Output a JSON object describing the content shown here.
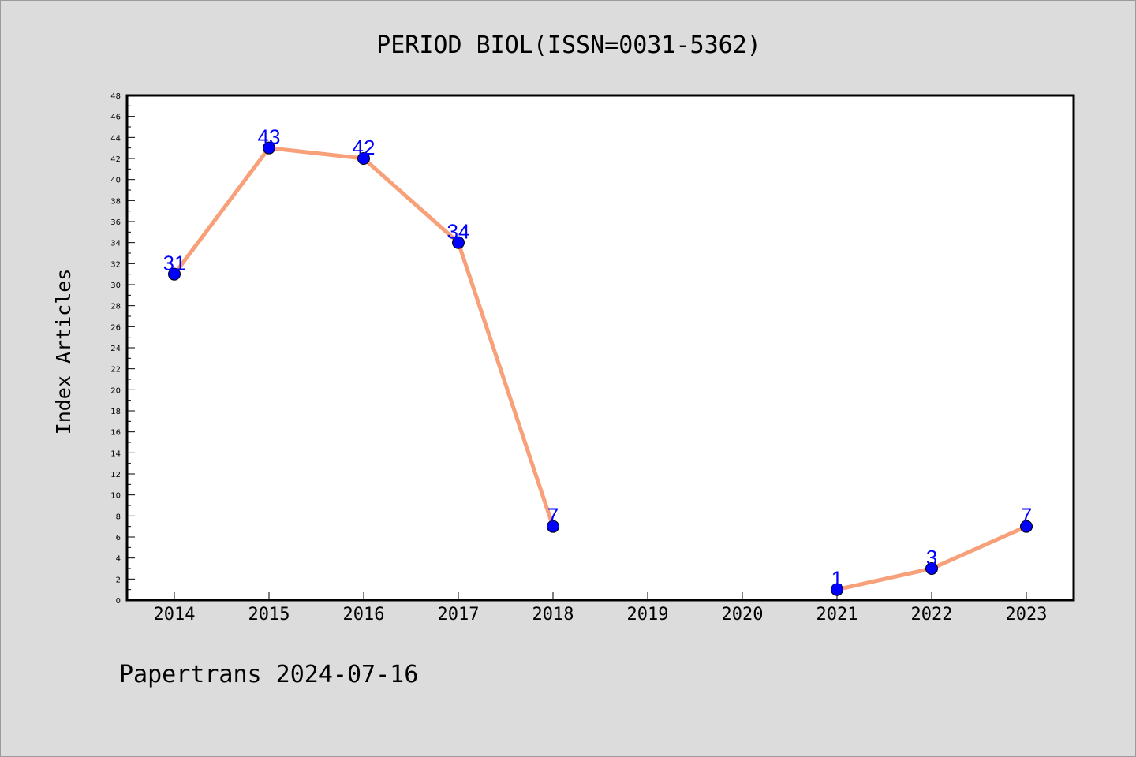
{
  "colors": {
    "background": "#dcdcdc",
    "plot_background": "#ffffff",
    "line": "#f7a07a",
    "marker": "#0000ff",
    "data_label": "#0000ff",
    "axis": "#000000"
  },
  "footer": {
    "text": "Papertrans 2024-07-16"
  },
  "chart_data": {
    "type": "line",
    "title": "PERIOD BIOL(ISSN=0031-5362)",
    "xlabel": "",
    "ylabel": "Index Articles",
    "ylim": [
      0,
      48
    ],
    "y_major_step": 2,
    "y_minor_step": 1,
    "grid": false,
    "legend": "none",
    "categories": [
      "2014",
      "2015",
      "2016",
      "2017",
      "2018",
      "2019",
      "2020",
      "2021",
      "2022",
      "2023"
    ],
    "series": [
      {
        "values": [
          31,
          43,
          42,
          34,
          7,
          null,
          null,
          1,
          3,
          7
        ],
        "color": "#f7a07a",
        "marker_color": "#0000ff"
      }
    ]
  }
}
